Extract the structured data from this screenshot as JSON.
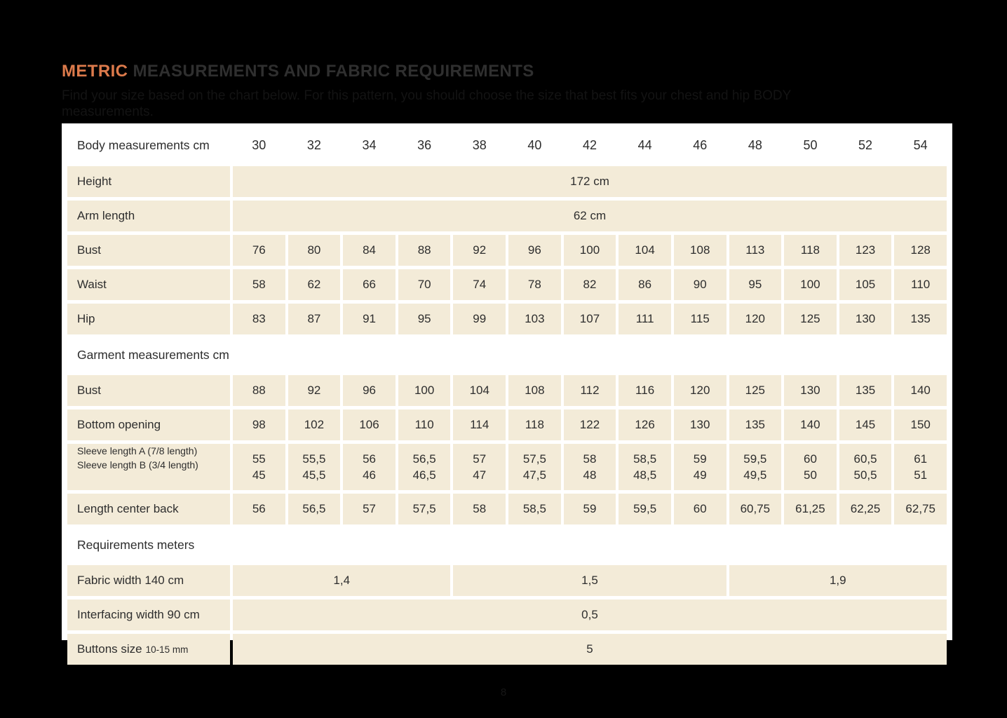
{
  "page": {
    "background_color": "#000000",
    "page_number": "8"
  },
  "header": {
    "title_highlight": "METRIC",
    "title_rest": " MEASUREMENTS AND FABRIC REQUIREMENTS",
    "highlight_color": "#dc7a4b",
    "subtitle": "Find your size based on the chart below. For this pattern, you should choose the size that best fits your chest and hip BODY measurements."
  },
  "table": {
    "colors": {
      "cell_background": "#f3ebd8",
      "table_background": "#ffffff",
      "text": "#2e2e2e"
    },
    "sizes": [
      "30",
      "32",
      "34",
      "36",
      "38",
      "40",
      "42",
      "44",
      "46",
      "48",
      "50",
      "52",
      "54"
    ],
    "rows": [
      {
        "type": "header",
        "label": "Body measurements cm"
      },
      {
        "type": "fullspan",
        "label": "Height",
        "value": "172 cm"
      },
      {
        "type": "fullspan",
        "label": "Arm length",
        "value": "62 cm"
      },
      {
        "type": "data",
        "label": "Bust",
        "values": [
          "76",
          "80",
          "84",
          "88",
          "92",
          "96",
          "100",
          "104",
          "108",
          "113",
          "118",
          "123",
          "128"
        ]
      },
      {
        "type": "data",
        "label": "Waist",
        "values": [
          "58",
          "62",
          "66",
          "70",
          "74",
          "78",
          "82",
          "86",
          "90",
          "95",
          "100",
          "105",
          "110"
        ]
      },
      {
        "type": "data",
        "label": "Hip",
        "values": [
          "83",
          "87",
          "91",
          "95",
          "99",
          "103",
          "107",
          "111",
          "115",
          "120",
          "125",
          "130",
          "135"
        ]
      },
      {
        "type": "section",
        "label": "Garment measurements cm"
      },
      {
        "type": "data",
        "label": "Bust",
        "values": [
          "88",
          "92",
          "96",
          "100",
          "104",
          "108",
          "112",
          "116",
          "120",
          "125",
          "130",
          "135",
          "140"
        ]
      },
      {
        "type": "data",
        "label": "Bottom opening",
        "values": [
          "98",
          "102",
          "106",
          "110",
          "114",
          "118",
          "122",
          "126",
          "130",
          "135",
          "140",
          "145",
          "150"
        ]
      },
      {
        "type": "sleeve",
        "label_lines": [
          "Sleeve length A (7/8 length)",
          "Sleeve length B (3/4 length)"
        ],
        "values_top": [
          "55",
          "55,5",
          "56",
          "56,5",
          "57",
          "57,5",
          "58",
          "58,5",
          "59",
          "59,5",
          "60",
          "60,5",
          "61"
        ],
        "values_bottom": [
          "45",
          "45,5",
          "46",
          "46,5",
          "47",
          "47,5",
          "48",
          "48,5",
          "49",
          "49,5",
          "50",
          "50,5",
          "51"
        ]
      },
      {
        "type": "data",
        "label": "Length center back",
        "values": [
          "56",
          "56,5",
          "57",
          "57,5",
          "58",
          "58,5",
          "59",
          "59,5",
          "60",
          "60,75",
          "61,25",
          "62,25",
          "62,75"
        ]
      },
      {
        "type": "section",
        "label": "Requirements meters"
      },
      {
        "type": "groupspan",
        "label": "Fabric width 140 cm",
        "groups": [
          {
            "span": 4,
            "value": "1,4"
          },
          {
            "span": 5,
            "value": "1,5"
          },
          {
            "span": 4,
            "value": "1,9"
          }
        ]
      },
      {
        "type": "fullspan",
        "label": "Interfacing width 90 cm",
        "value": "0,5"
      },
      {
        "type": "fullspan",
        "label": "Buttons size",
        "label_small": "10-15 mm",
        "value": "5"
      }
    ]
  }
}
